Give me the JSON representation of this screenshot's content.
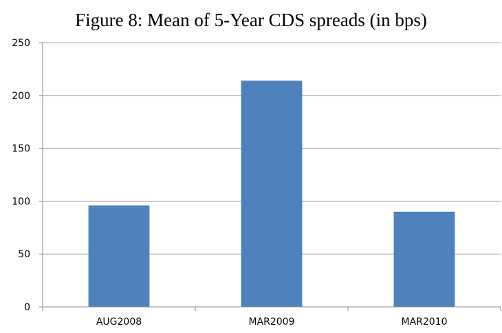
{
  "chart_data": {
    "type": "bar",
    "title": "Figure 8: Mean of 5-Year CDS spreads (in bps)",
    "categories": [
      "AUG2008",
      "MAR2009",
      "MAR2010"
    ],
    "values": [
      96,
      214,
      90
    ],
    "ylim": [
      0,
      250
    ],
    "yticks": [
      0,
      50,
      100,
      150,
      200,
      250
    ],
    "grid": true,
    "bar_color": "#4F81BD",
    "grid_color": "#a6a6a6",
    "xlabel": "",
    "ylabel": ""
  }
}
